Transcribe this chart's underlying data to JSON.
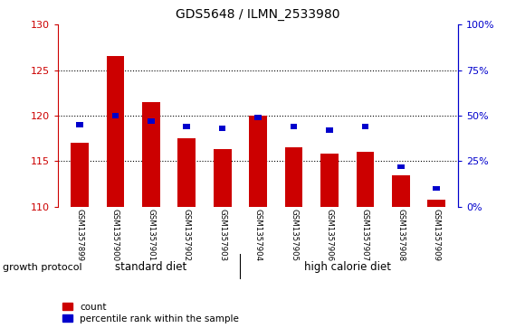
{
  "title": "GDS5648 / ILMN_2533980",
  "samples": [
    "GSM1357899",
    "GSM1357900",
    "GSM1357901",
    "GSM1357902",
    "GSM1357903",
    "GSM1357904",
    "GSM1357905",
    "GSM1357906",
    "GSM1357907",
    "GSM1357908",
    "GSM1357909"
  ],
  "counts": [
    117.0,
    126.5,
    121.5,
    117.5,
    116.3,
    120.0,
    116.5,
    115.8,
    116.0,
    113.4,
    110.8
  ],
  "percentile_ranks": [
    45,
    50,
    47,
    44,
    43,
    49,
    44,
    42,
    44,
    22,
    10
  ],
  "y_min": 110,
  "y_max": 130,
  "y_ticks_left": [
    110,
    115,
    120,
    125,
    130
  ],
  "y_ticks_right": [
    0,
    25,
    50,
    75,
    100
  ],
  "left_axis_color": "#cc0000",
  "right_axis_color": "#0000cc",
  "bar_color": "#cc0000",
  "percentile_color": "#0000cc",
  "group1_label": "standard diet",
  "group2_label": "high calorie diet",
  "group1_indices": [
    0,
    1,
    2,
    3,
    4
  ],
  "group2_indices": [
    5,
    6,
    7,
    8,
    9,
    10
  ],
  "group_color": "#90ee90",
  "tick_area_color": "#c8c8c8",
  "protocol_label": "growth protocol",
  "legend_count_label": "count",
  "legend_percentile_label": "percentile rank within the sample",
  "bar_width": 0.5
}
